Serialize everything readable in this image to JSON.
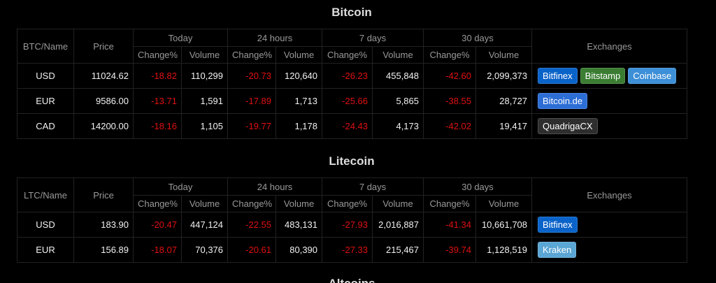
{
  "sections": [
    {
      "title": "Bitcoin",
      "header": {
        "name": "BTC/Name",
        "price": "Price",
        "groups": [
          "Today",
          "24 hours",
          "7 days",
          "30 days"
        ],
        "sub": [
          "Change%",
          "Volume",
          "Change%",
          "Volume",
          "Change%",
          "Volume",
          "Change%",
          "Volume"
        ],
        "exchanges": "Exchanges"
      },
      "rows": [
        {
          "cells": [
            "USD",
            "11024.62",
            "-18.82",
            "110,299",
            "-20.73",
            "120,640",
            "-26.23",
            "455,848",
            "-42.60",
            "2,099,373"
          ],
          "exchanges": [
            {
              "label": "Bitfinex",
              "color": "#0a63c9"
            },
            {
              "label": "Bitstamp",
              "color": "#3a7d32"
            },
            {
              "label": "Coinbase",
              "color": "#3d8fd8"
            }
          ]
        },
        {
          "cells": [
            "EUR",
            "9586.00",
            "-13.71",
            "1,591",
            "-17.89",
            "1,713",
            "-25.66",
            "5,865",
            "-38.55",
            "28,727"
          ],
          "exchanges": [
            {
              "label": "Bitcoin.de",
              "color": "#2d6ed6"
            }
          ]
        },
        {
          "cells": [
            "CAD",
            "14200.00",
            "-18.16",
            "1,105",
            "-19.77",
            "1,178",
            "-24.43",
            "4,173",
            "-42.02",
            "19,417"
          ],
          "exchanges": [
            {
              "label": "QuadrigaCX",
              "color": "#2e2e2e"
            }
          ]
        }
      ]
    },
    {
      "title": "Litecoin",
      "header": {
        "name": "LTC/Name",
        "price": "Price",
        "groups": [
          "Today",
          "24 hours",
          "7 days",
          "30 days"
        ],
        "sub": [
          "Change%",
          "Volume",
          "Change%",
          "Volume",
          "Change%",
          "Volume",
          "Change%",
          "Volume"
        ],
        "exchanges": "Exchanges"
      },
      "rows": [
        {
          "cells": [
            "USD",
            "183.90",
            "-20.47",
            "447,124",
            "-22.55",
            "483,131",
            "-27.93",
            "2,016,887",
            "-41.34",
            "10,661,708"
          ],
          "exchanges": [
            {
              "label": "Bitfinex",
              "color": "#0a63c9"
            }
          ]
        },
        {
          "cells": [
            "EUR",
            "156.89",
            "-18.07",
            "70,376",
            "-20.61",
            "80,390",
            "-27.33",
            "215,467",
            "-39.74",
            "1,128,519"
          ],
          "exchanges": [
            {
              "label": "Kraken",
              "color": "#5aa6d4"
            }
          ]
        }
      ]
    }
  ],
  "next_title": "Altcoins"
}
